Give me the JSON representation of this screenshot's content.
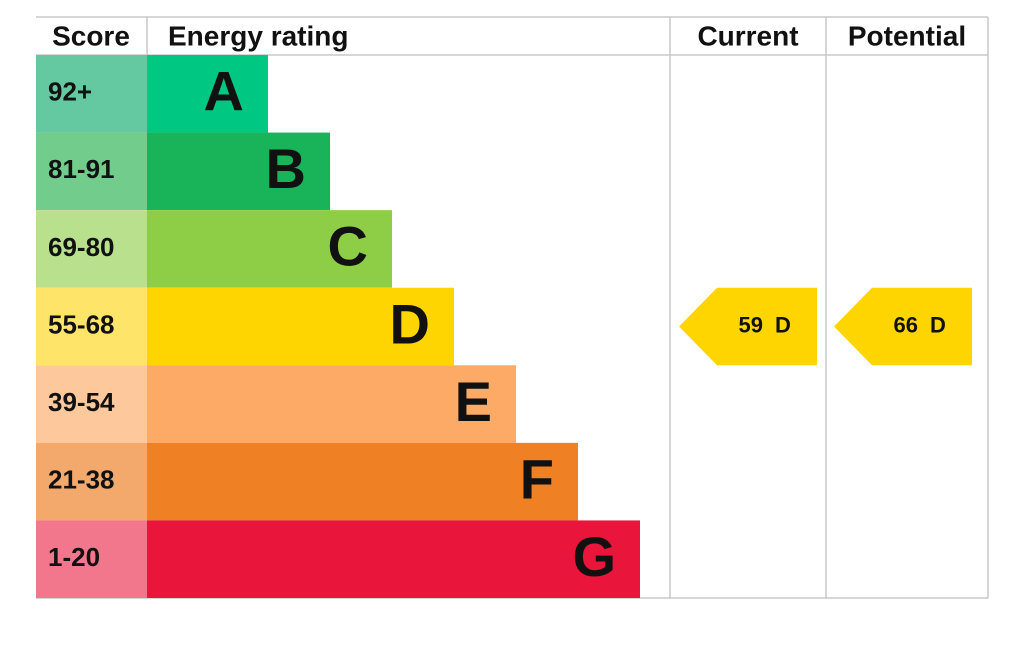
{
  "headers": {
    "score": "Score",
    "rating": "Energy rating",
    "current": "Current",
    "potential": "Potential"
  },
  "bands": [
    {
      "score": "92+",
      "letter": "A",
      "color": "#00c781",
      "score_color": "#64c8a0"
    },
    {
      "score": "81-91",
      "letter": "B",
      "color": "#19b459",
      "score_color": "#72cc8c"
    },
    {
      "score": "69-80",
      "letter": "C",
      "color": "#8dce46",
      "score_color": "#b9e08c"
    },
    {
      "score": "55-68",
      "letter": "D",
      "color": "#ffd500",
      "score_color": "#ffe46a"
    },
    {
      "score": "39-54",
      "letter": "E",
      "color": "#fcaa65",
      "score_color": "#fdc89c"
    },
    {
      "score": "21-38",
      "letter": "F",
      "color": "#ef8023",
      "score_color": "#f4a96c"
    },
    {
      "score": "1-20",
      "letter": "G",
      "color": "#e9153b",
      "score_color": "#f2768c"
    }
  ],
  "current": {
    "value": 59,
    "letter": "D",
    "color": "#ffd500"
  },
  "potential": {
    "value": 66,
    "letter": "D",
    "color": "#ffd500"
  }
}
